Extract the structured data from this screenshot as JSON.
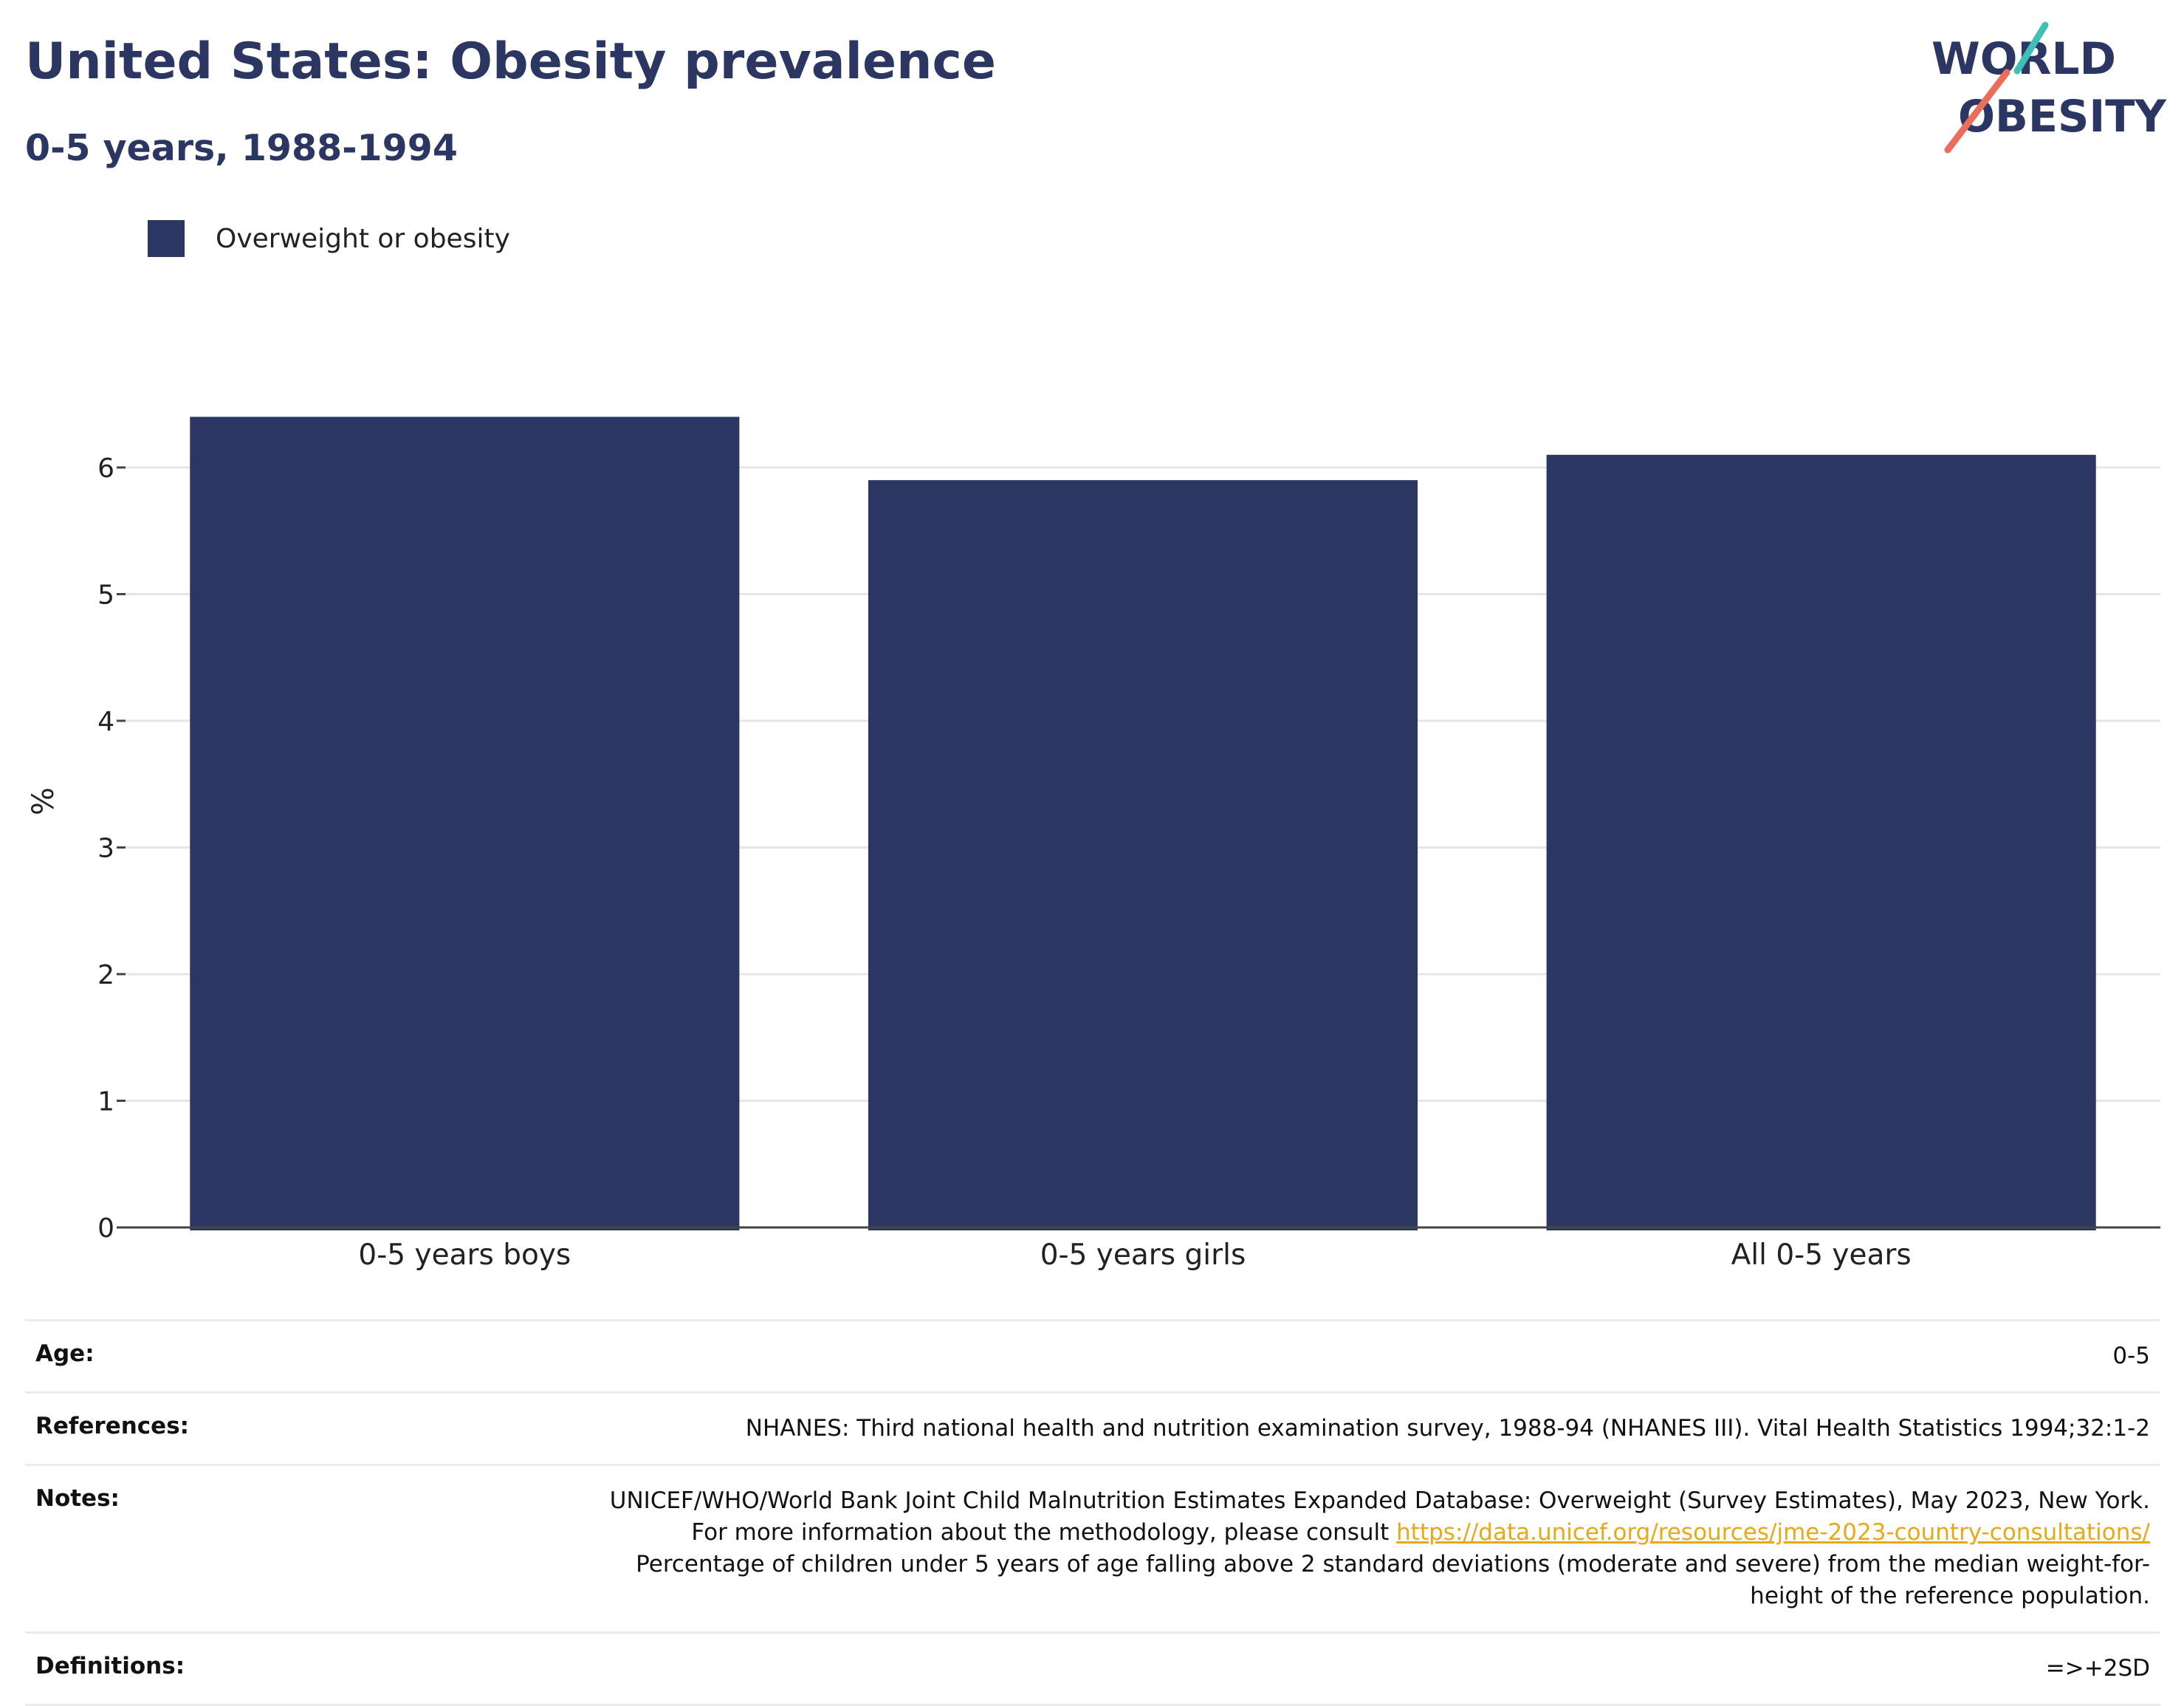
{
  "header": {
    "title": "United States: Obesity prevalence",
    "subtitle": "0-5 years, 1988-1994"
  },
  "logo": {
    "line1": "WORLD",
    "line2": "OBESITY",
    "text_color": "#2b3762",
    "accent_teal": "#3fbfb8",
    "accent_coral": "#ea6e5b"
  },
  "legend": {
    "items": [
      {
        "label": "Overweight or obesity",
        "color": "#2b3762"
      }
    ]
  },
  "chart_data": {
    "type": "bar",
    "categories": [
      "0-5 years boys",
      "0-5 years girls",
      "All 0-5 years"
    ],
    "series": [
      {
        "name": "Overweight or obesity",
        "values": [
          6.4,
          5.9,
          6.1
        ],
        "color": "#2b3762"
      }
    ],
    "ylabel": "%",
    "ylim": [
      0,
      6.6
    ],
    "yticks": [
      "0",
      "1",
      "2",
      "3",
      "4",
      "5",
      "6"
    ],
    "grid": true,
    "legend_position": "top-left"
  },
  "metadata": {
    "rows": [
      {
        "key": "Age:",
        "value": "0-5"
      },
      {
        "key": "References:",
        "value": "NHANES: Third national health and nutrition examination survey, 1988-94 (NHANES III). Vital Health Statistics 1994;32:1-2"
      },
      {
        "key": "Notes:",
        "value": "UNICEF/WHO/World Bank Joint Child Malnutrition Estimates Expanded Database: Overweight (Survey Estimates), May 2023, New York. For more information about the methodology, please consult",
        "link": "https://data.unicef.org/resources/jme-2023-country-consultations/",
        "value_after": "Percentage of children under 5 years of age falling above 2 standard deviations (moderate and severe) from the median weight-for-height of the reference population."
      },
      {
        "key": "Definitions:",
        "value": "=>+2SD"
      }
    ]
  }
}
